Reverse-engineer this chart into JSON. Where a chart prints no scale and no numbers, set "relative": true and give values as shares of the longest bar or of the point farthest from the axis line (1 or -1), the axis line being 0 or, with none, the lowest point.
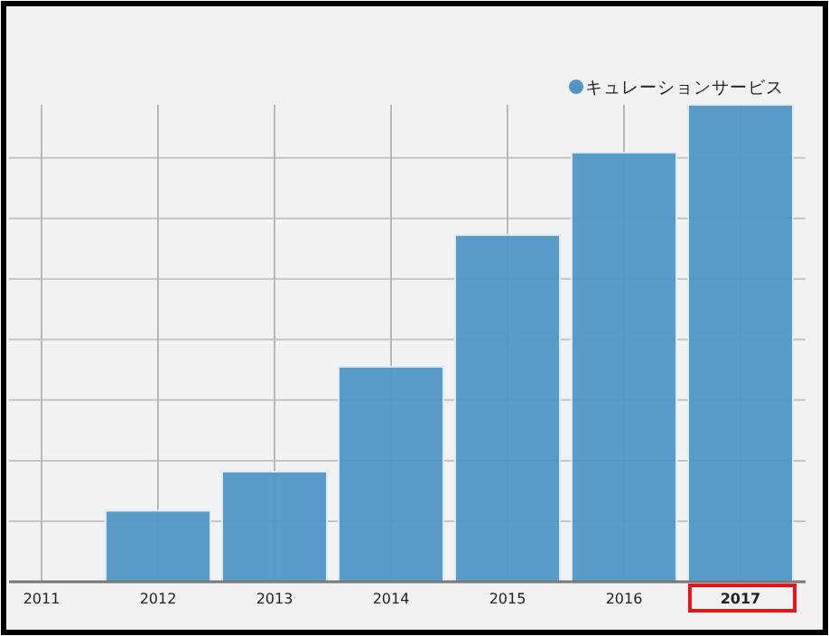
{
  "chart_data": {
    "type": "bar",
    "relative": true,
    "grid": true,
    "legend": "top right",
    "categories": [
      "2011",
      "2012",
      "2013",
      "2014",
      "2015",
      "2016",
      "2017"
    ],
    "series": [
      {
        "name": "キュレーションサービス",
        "color": "#5096c6",
        "values": [
          0,
          0.149,
          0.231,
          0.451,
          0.727,
          0.9,
          1
        ]
      }
    ]
  }
}
